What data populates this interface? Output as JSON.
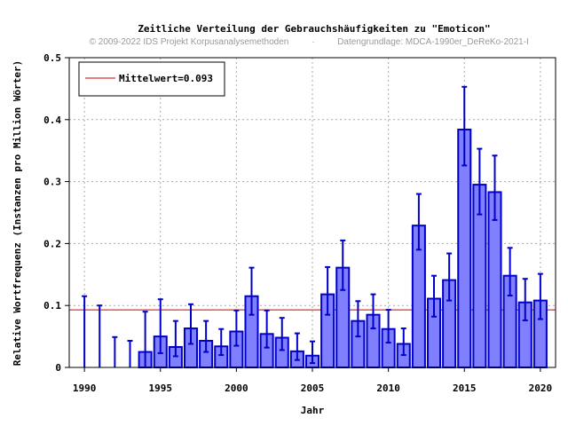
{
  "chart_data": {
    "type": "bar",
    "title": "Zeitliche Verteilung der Gebrauchshäufigkeiten zu \"Emoticon\"",
    "copyright": "© 2009-2022 IDS Projekt Korpusanalysemethoden",
    "separator": "·",
    "source": "Datengrundlage: MDCA-1990er_DeReKo-2021-I",
    "xlabel": "Jahr",
    "ylabel": "Relative Wortfrequenz (Instanzen pro Million Wörter)",
    "xlim": [
      1989,
      2021
    ],
    "ylim": [
      0,
      0.5
    ],
    "x_ticks": [
      1990,
      1995,
      2000,
      2005,
      2010,
      2015,
      2020
    ],
    "y_ticks": [
      0,
      0.1,
      0.2,
      0.3,
      0.4,
      0.5
    ],
    "y_tick_labels": [
      "0",
      "0.1",
      "0.2",
      "0.3",
      "0.4",
      "0.5"
    ],
    "grid": true,
    "legend_position": "top-left",
    "mean": {
      "label": "Mittelwert=0.093",
      "value": 0.093
    },
    "x": [
      1990,
      1991,
      1992,
      1993,
      1994,
      1995,
      1996,
      1997,
      1998,
      1999,
      2000,
      2001,
      2002,
      2003,
      2004,
      2005,
      2006,
      2007,
      2008,
      2009,
      2010,
      2011,
      2012,
      2013,
      2014,
      2015,
      2016,
      2017,
      2018,
      2019,
      2020
    ],
    "values": [
      0,
      0,
      0,
      0,
      0.025,
      0.05,
      0.033,
      0.063,
      0.043,
      0.034,
      0.058,
      0.115,
      0.054,
      0.048,
      0.026,
      0.019,
      0.118,
      0.161,
      0.075,
      0.085,
      0.062,
      0.038,
      0.229,
      0.111,
      0.141,
      0.384,
      0.295,
      0.283,
      0.148,
      0.105,
      0.108
    ],
    "error_low": [
      0,
      0,
      0,
      0,
      0,
      0.023,
      0.018,
      0.038,
      0.025,
      0.02,
      0.035,
      0.085,
      0.032,
      0.028,
      0.012,
      0.007,
      0.085,
      0.125,
      0.05,
      0.063,
      0.04,
      0.02,
      0.19,
      0.082,
      0.108,
      0.326,
      0.247,
      0.238,
      0.116,
      0.076,
      0.078
    ],
    "error_high": [
      0.115,
      0.1,
      0.049,
      0.043,
      0.09,
      0.11,
      0.075,
      0.102,
      0.075,
      0.062,
      0.092,
      0.161,
      0.092,
      0.08,
      0.055,
      0.042,
      0.162,
      0.205,
      0.107,
      0.118,
      0.093,
      0.063,
      0.28,
      0.148,
      0.184,
      0.453,
      0.353,
      0.342,
      0.193,
      0.143,
      0.151
    ],
    "colors": {
      "bar_fill": "#8080ff",
      "bar_stroke": "#0000cc",
      "error_bar": "#0000cc",
      "mean_line": "#cc0000",
      "grid": "#aaaaaa",
      "text": "#000000",
      "subtitle": "#999999"
    }
  }
}
